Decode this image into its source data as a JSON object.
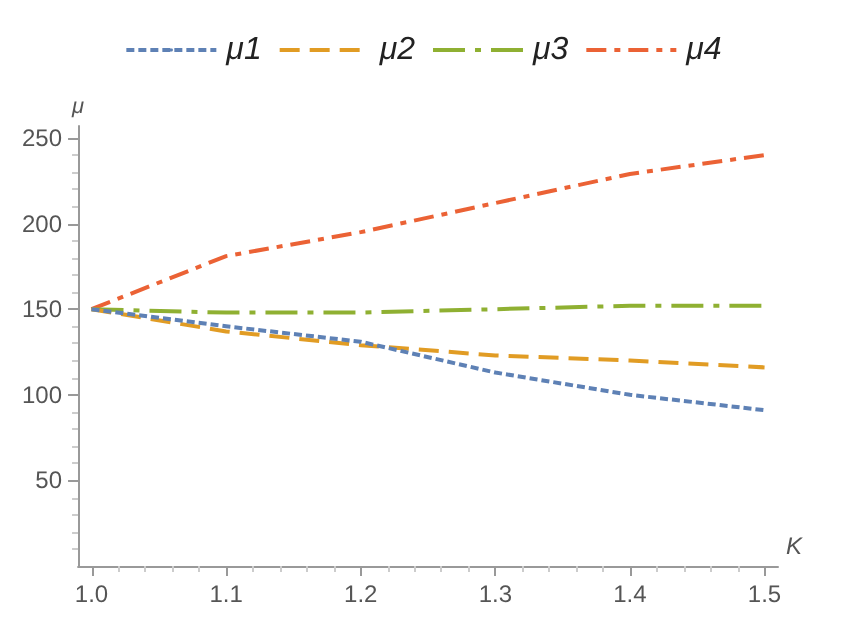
{
  "chart_data": {
    "type": "line",
    "xlabel": "K",
    "ylabel": "μ",
    "x": [
      1.0,
      1.1,
      1.2,
      1.3,
      1.4,
      1.5
    ],
    "series": [
      {
        "name": "μ1",
        "color": "#5e81b5",
        "values": [
          150,
          140,
          131,
          113,
          100,
          91
        ]
      },
      {
        "name": "μ2",
        "color": "#e19c24",
        "values": [
          150,
          137,
          129,
          123,
          120,
          116
        ]
      },
      {
        "name": "μ3",
        "color": "#8fb032",
        "values": [
          150,
          148,
          148,
          150,
          152,
          152
        ]
      },
      {
        "name": "μ4",
        "color": "#eb6235",
        "values": [
          150,
          181,
          195,
          212,
          229,
          240
        ]
      }
    ],
    "xlim": [
      0.99,
      1.51
    ],
    "xticks": [
      {
        "value": 1.0,
        "label": "1.0"
      },
      1.1,
      1.2,
      1.3,
      1.4,
      1.5
    ],
    "ylim": [
      0,
      257
    ],
    "yticks": [
      50,
      100,
      150,
      200,
      250
    ],
    "grid": false,
    "legend": "top",
    "marker": "none",
    "line_style": "dashed"
  }
}
